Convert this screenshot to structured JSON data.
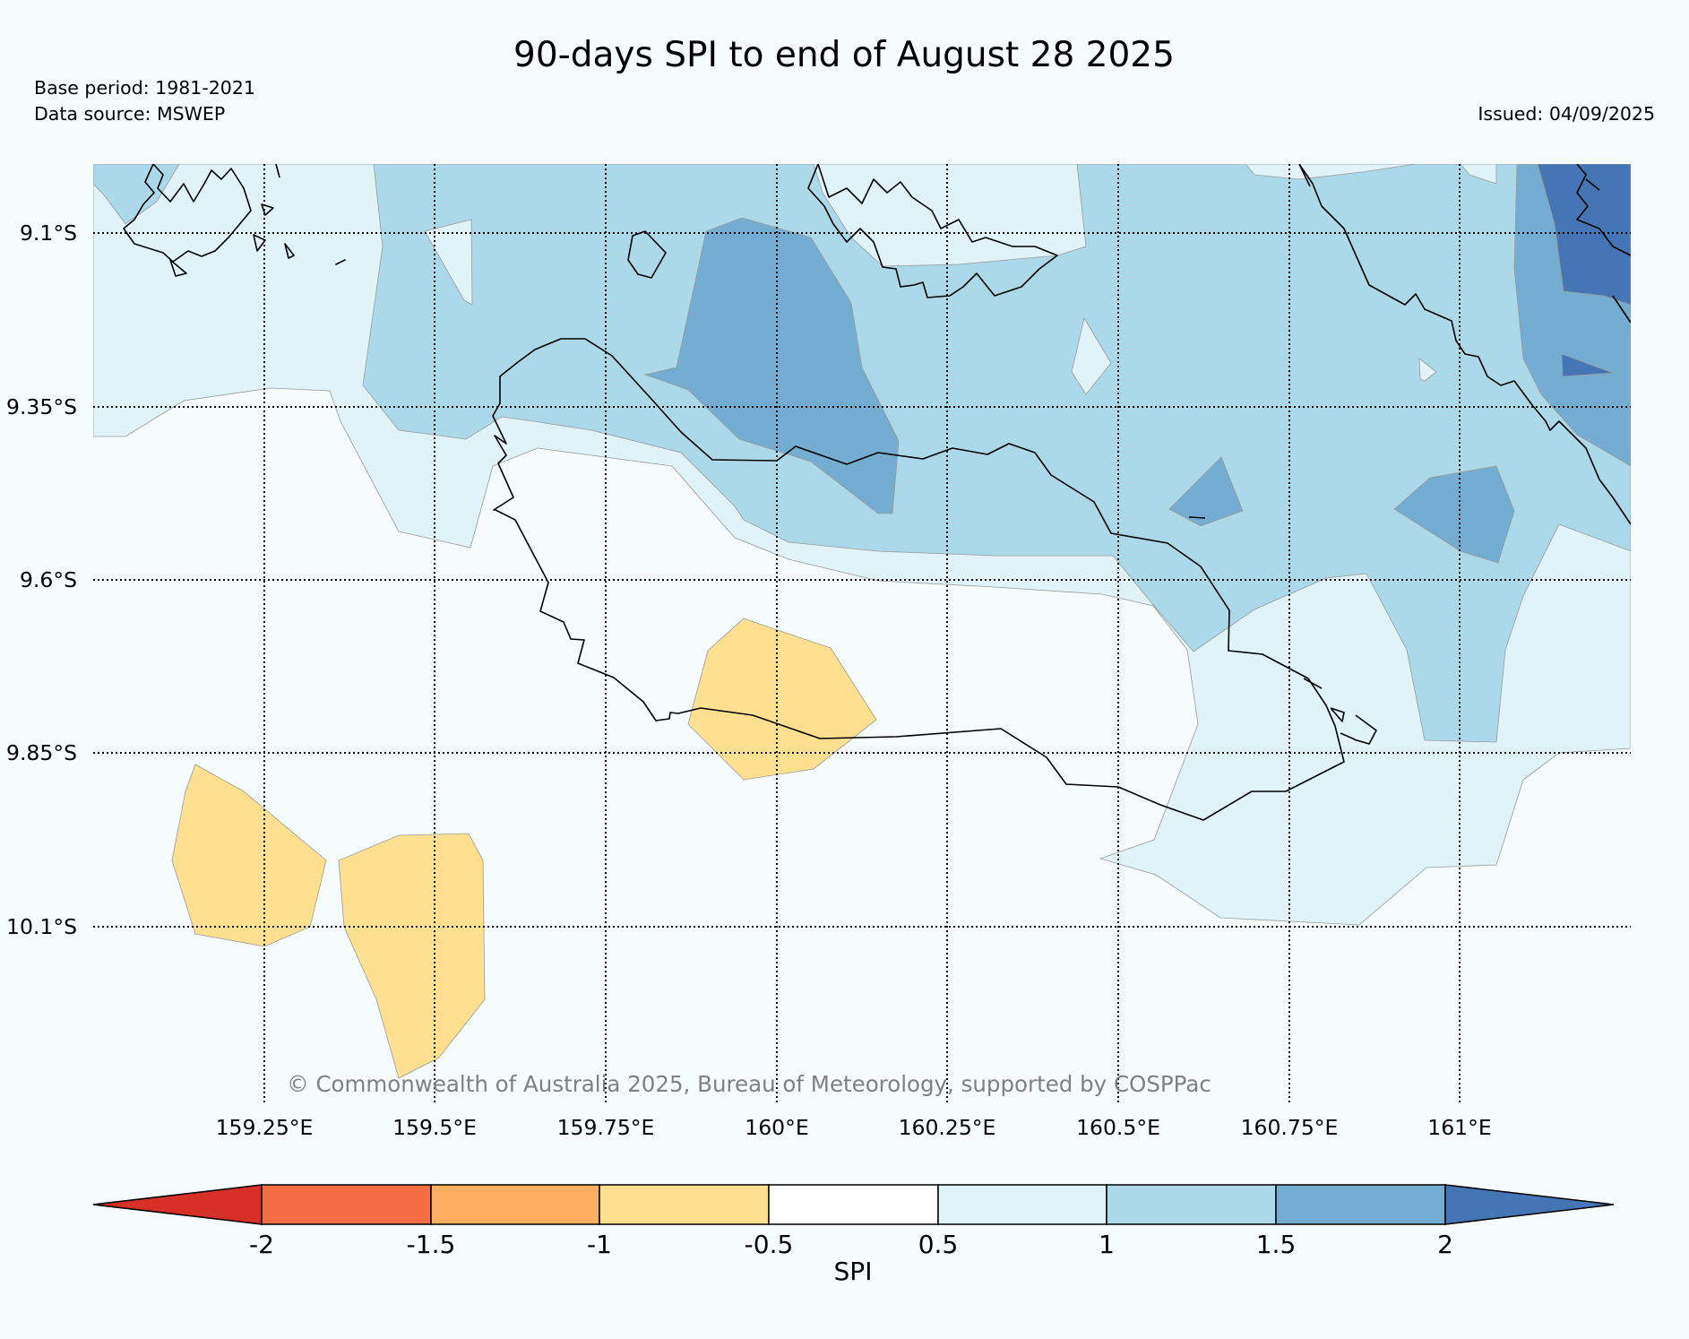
{
  "title": "90-days SPI to end of August 28 2025",
  "base_period": "Base period: 1981-2021",
  "data_source": "Data source: MSWEP",
  "issued": "Issued: 04/09/2025",
  "copyright": "© Commonwealth of Australia 2025, Bureau of Meteorology, supported by COSPPac",
  "map": {
    "lat_range": [
      -10.35,
      -9.0
    ],
    "lon_range": [
      159.0,
      161.25
    ],
    "lat_ticks": [
      {
        "value": -9.1,
        "label": "9.1°S"
      },
      {
        "value": -9.35,
        "label": "9.35°S"
      },
      {
        "value": -9.6,
        "label": "9.6°S"
      },
      {
        "value": -9.85,
        "label": "9.85°S"
      },
      {
        "value": -10.1,
        "label": "10.1°S"
      }
    ],
    "lon_ticks": [
      {
        "value": 159.25,
        "label": "159.25°E"
      },
      {
        "value": 159.5,
        "label": "159.5°E"
      },
      {
        "value": 159.75,
        "label": "159.75°E"
      },
      {
        "value": 160.0,
        "label": "160°E"
      },
      {
        "value": 160.25,
        "label": "160.25°E"
      },
      {
        "value": 160.5,
        "label": "160.5°E"
      },
      {
        "value": 160.75,
        "label": "160.75°E"
      },
      {
        "value": 161.0,
        "label": "161°E"
      }
    ],
    "colors": {
      "background": "#f6fbfc",
      "spi_lt_neg2": "#d73027",
      "spi_neg2_neg1_5": "#f46d43",
      "spi_neg1_5_neg1": "#fdae61",
      "spi_neg1_neg0_5": "#fee090",
      "spi_neg0_5_0_5": "#ffffff",
      "spi_0_5_1": "#e0f3f8",
      "spi_1_1_5": "#abd9e9",
      "spi_1_5_2": "#74add1",
      "spi_gt_2": "#4575b4"
    }
  },
  "colorbar": {
    "label": "SPI",
    "extend": "both",
    "ticks": [
      "-2",
      "-1.5",
      "-1",
      "-0.5",
      "0.5",
      "1",
      "1.5",
      "2"
    ],
    "colors": [
      "#d73027",
      "#f46d43",
      "#fdae61",
      "#fee090",
      "#ffffff",
      "#e0f3f8",
      "#abd9e9",
      "#74add1",
      "#4575b4"
    ]
  }
}
